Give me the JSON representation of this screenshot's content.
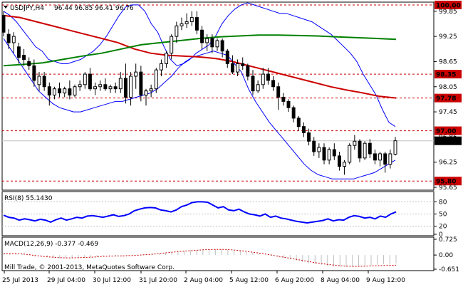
{
  "header": {
    "symbol": "USDJPY,H4",
    "ohlc": "96.44 96.85 96.41 96.76",
    "arrow_icon": "triangle-down-icon"
  },
  "main_chart": {
    "price_axis_ticks": [
      "99.85",
      "99.25",
      "98.65",
      "98.05",
      "97.45",
      "96.85",
      "96.25",
      "95.65"
    ],
    "levels": [
      {
        "value": 100.0,
        "label": "100.00",
        "color": "#cc0000"
      },
      {
        "value": 98.35,
        "label": "98.35",
        "color": "#cc0000"
      },
      {
        "value": 97.78,
        "label": "97.78",
        "color": "#cc0000"
      },
      {
        "value": 97.0,
        "label": "97.00",
        "color": "#cc0000"
      },
      {
        "value": 95.8,
        "label": "95.80",
        "color": "#cc0000"
      }
    ],
    "current_price": {
      "value": 96.76,
      "label": "96.76"
    },
    "colors": {
      "candle": "#000000",
      "bollinger": "#0000ff",
      "ma_red": "#cc0000",
      "ma_green": "#008000",
      "level_line": "#cc0000",
      "current_line": "#c0c0c0"
    }
  },
  "chart_data": {
    "type": "candlestick",
    "instrument": "USDJPY",
    "timeframe": "H4",
    "ylim": [
      95.6,
      100.05
    ],
    "x_labels": [
      "25 Jul 2013",
      "29 Jul 04:00",
      "30 Jul 12:00",
      "31 Jul 20:00",
      "2 Aug 04:00",
      "5 Aug 12:00",
      "6 Aug 20:00",
      "8 Aug 04:00",
      "9 Aug 12:00"
    ],
    "candles": [
      {
        "o": 99.75,
        "h": 99.85,
        "c": 99.35,
        "l": 99.25
      },
      {
        "o": 99.3,
        "h": 99.42,
        "c": 99.1,
        "l": 98.95
      },
      {
        "o": 99.1,
        "h": 99.35,
        "c": 99.25,
        "l": 98.85
      },
      {
        "o": 99.0,
        "h": 99.1,
        "c": 98.75,
        "l": 98.6
      },
      {
        "o": 98.8,
        "h": 98.95,
        "c": 98.7,
        "l": 98.55
      },
      {
        "o": 98.65,
        "h": 98.75,
        "c": 98.55,
        "l": 98.45
      },
      {
        "o": 98.55,
        "h": 98.7,
        "c": 98.2,
        "l": 98.05
      },
      {
        "o": 98.1,
        "h": 98.4,
        "c": 98.3,
        "l": 97.95
      },
      {
        "o": 98.3,
        "h": 98.4,
        "c": 98.05,
        "l": 97.95
      },
      {
        "o": 98.05,
        "h": 98.15,
        "c": 97.85,
        "l": 97.6
      },
      {
        "o": 97.85,
        "h": 98.05,
        "c": 98.0,
        "l": 97.75
      },
      {
        "o": 98.0,
        "h": 98.15,
        "c": 97.9,
        "l": 97.8
      },
      {
        "o": 97.9,
        "h": 98.05,
        "c": 98.0,
        "l": 97.8
      },
      {
        "o": 98.0,
        "h": 98.2,
        "c": 97.85,
        "l": 97.75
      },
      {
        "o": 97.85,
        "h": 98.1,
        "c": 98.05,
        "l": 97.8
      },
      {
        "o": 98.05,
        "h": 98.2,
        "c": 98.1,
        "l": 97.95
      },
      {
        "o": 98.1,
        "h": 98.4,
        "c": 98.35,
        "l": 98.0
      },
      {
        "o": 98.35,
        "h": 98.5,
        "c": 98.0,
        "l": 97.95
      },
      {
        "o": 98.0,
        "h": 98.15,
        "c": 98.05,
        "l": 97.85
      },
      {
        "o": 98.05,
        "h": 98.2,
        "c": 98.1,
        "l": 97.95
      },
      {
        "o": 98.1,
        "h": 98.25,
        "c": 98.0,
        "l": 97.95
      },
      {
        "o": 98.0,
        "h": 98.1,
        "c": 98.05,
        "l": 97.9
      },
      {
        "o": 98.05,
        "h": 98.15,
        "c": 98.0,
        "l": 97.9
      },
      {
        "o": 98.0,
        "h": 98.4,
        "c": 98.25,
        "l": 97.9
      },
      {
        "o": 98.25,
        "h": 98.6,
        "c": 97.8,
        "l": 97.65
      },
      {
        "o": 97.8,
        "h": 98.4,
        "c": 98.3,
        "l": 97.6
      },
      {
        "o": 98.3,
        "h": 98.6,
        "c": 98.4,
        "l": 98.0
      },
      {
        "o": 98.4,
        "h": 98.55,
        "c": 97.85,
        "l": 97.7
      },
      {
        "o": 97.85,
        "h": 98.0,
        "c": 97.95,
        "l": 97.6
      },
      {
        "o": 97.95,
        "h": 98.1,
        "c": 98.0,
        "l": 97.8
      },
      {
        "o": 98.0,
        "h": 98.5,
        "c": 98.45,
        "l": 97.9
      },
      {
        "o": 98.45,
        "h": 98.7,
        "c": 98.6,
        "l": 98.3
      },
      {
        "o": 98.6,
        "h": 98.9,
        "c": 98.85,
        "l": 98.5
      },
      {
        "o": 98.85,
        "h": 99.3,
        "c": 99.25,
        "l": 98.7
      },
      {
        "o": 99.25,
        "h": 99.6,
        "c": 99.5,
        "l": 99.1
      },
      {
        "o": 99.5,
        "h": 99.7,
        "c": 99.55,
        "l": 99.4
      },
      {
        "o": 99.55,
        "h": 99.8,
        "c": 99.6,
        "l": 99.45
      },
      {
        "o": 99.6,
        "h": 99.85,
        "c": 99.7,
        "l": 99.5
      },
      {
        "o": 99.7,
        "h": 99.85,
        "c": 99.4,
        "l": 99.3
      },
      {
        "o": 99.4,
        "h": 99.5,
        "c": 99.1,
        "l": 98.95
      },
      {
        "o": 99.1,
        "h": 99.3,
        "c": 99.2,
        "l": 98.9
      },
      {
        "o": 99.2,
        "h": 99.3,
        "c": 99.0,
        "l": 98.85
      },
      {
        "o": 99.0,
        "h": 99.2,
        "c": 99.15,
        "l": 98.9
      },
      {
        "o": 99.15,
        "h": 99.2,
        "c": 98.9,
        "l": 98.75
      },
      {
        "o": 98.9,
        "h": 98.95,
        "c": 98.6,
        "l": 98.5
      },
      {
        "o": 98.6,
        "h": 98.8,
        "c": 98.4,
        "l": 98.35
      },
      {
        "o": 98.4,
        "h": 98.7,
        "c": 98.6,
        "l": 98.3
      },
      {
        "o": 98.6,
        "h": 98.75,
        "c": 98.55,
        "l": 98.45
      },
      {
        "o": 98.55,
        "h": 98.6,
        "c": 98.3,
        "l": 98.2
      },
      {
        "o": 98.3,
        "h": 98.45,
        "c": 97.95,
        "l": 97.85
      },
      {
        "o": 97.95,
        "h": 98.2,
        "c": 98.1,
        "l": 97.9
      },
      {
        "o": 98.1,
        "h": 98.5,
        "c": 98.35,
        "l": 98.0
      },
      {
        "o": 98.35,
        "h": 98.5,
        "c": 98.2,
        "l": 98.1
      },
      {
        "o": 98.2,
        "h": 98.3,
        "c": 98.05,
        "l": 97.95
      },
      {
        "o": 98.05,
        "h": 98.15,
        "c": 97.8,
        "l": 97.5
      },
      {
        "o": 97.8,
        "h": 97.9,
        "c": 97.7,
        "l": 97.6
      },
      {
        "o": 97.7,
        "h": 97.75,
        "c": 97.55,
        "l": 97.45
      },
      {
        "o": 97.55,
        "h": 97.6,
        "c": 97.3,
        "l": 97.2
      },
      {
        "o": 97.3,
        "h": 97.35,
        "c": 97.1,
        "l": 97.0
      },
      {
        "o": 97.1,
        "h": 97.2,
        "c": 96.95,
        "l": 96.85
      },
      {
        "o": 96.95,
        "h": 97.05,
        "c": 96.75,
        "l": 96.65
      },
      {
        "o": 96.75,
        "h": 96.85,
        "c": 96.5,
        "l": 96.4
      },
      {
        "o": 96.5,
        "h": 96.7,
        "c": 96.6,
        "l": 96.35
      },
      {
        "o": 96.6,
        "h": 96.7,
        "c": 96.3,
        "l": 96.2
      },
      {
        "o": 96.3,
        "h": 96.6,
        "c": 96.55,
        "l": 96.2
      },
      {
        "o": 96.55,
        "h": 96.7,
        "c": 96.4,
        "l": 96.3
      },
      {
        "o": 96.4,
        "h": 96.5,
        "c": 96.15,
        "l": 96.05
      },
      {
        "o": 96.15,
        "h": 96.3,
        "c": 96.25,
        "l": 95.95
      },
      {
        "o": 96.25,
        "h": 96.7,
        "c": 96.65,
        "l": 96.2
      },
      {
        "o": 96.65,
        "h": 96.9,
        "c": 96.75,
        "l": 96.55
      },
      {
        "o": 96.75,
        "h": 96.8,
        "c": 96.35,
        "l": 96.25
      },
      {
        "o": 96.35,
        "h": 96.75,
        "c": 96.7,
        "l": 96.3
      },
      {
        "o": 96.7,
        "h": 96.8,
        "c": 96.45,
        "l": 96.35
      },
      {
        "o": 96.45,
        "h": 96.55,
        "c": 96.3,
        "l": 96.2
      },
      {
        "o": 96.3,
        "h": 96.5,
        "c": 96.45,
        "l": 96.15
      },
      {
        "o": 96.45,
        "h": 96.5,
        "c": 96.2,
        "l": 96.0
      },
      {
        "o": 96.2,
        "h": 96.55,
        "c": 96.45,
        "l": 96.1
      },
      {
        "o": 96.44,
        "h": 96.85,
        "c": 96.76,
        "l": 96.41
      }
    ],
    "bollinger_upper": [
      99.85,
      99.75,
      99.6,
      99.4,
      99.2,
      99.0,
      98.9,
      98.7,
      98.65,
      98.6,
      98.6,
      98.65,
      98.7,
      98.8,
      98.9,
      99.05,
      99.25,
      99.5,
      99.75,
      99.95,
      100.0,
      100.0,
      99.85,
      99.55,
      99.35,
      99.0,
      98.7,
      98.55,
      98.6,
      98.7,
      98.85,
      98.95,
      99.05,
      99.25,
      99.55,
      99.75,
      99.9,
      100.0,
      100.05,
      100.0,
      99.95,
      99.9,
      99.85,
      99.8,
      99.8,
      99.75,
      99.7,
      99.65,
      99.6,
      99.5,
      99.4,
      99.3,
      99.15,
      99.0,
      98.85,
      98.65,
      98.35,
      98.1,
      97.85,
      97.5,
      97.2,
      97.1
    ],
    "bollinger_lower": [
      99.2,
      98.95,
      98.7,
      98.45,
      98.2,
      97.95,
      97.8,
      97.65,
      97.55,
      97.5,
      97.45,
      97.45,
      97.5,
      97.55,
      97.6,
      97.65,
      97.7,
      97.7,
      97.75,
      97.8,
      97.85,
      97.9,
      98.0,
      98.15,
      98.3,
      98.5,
      98.65,
      98.75,
      98.8,
      98.85,
      98.9,
      98.85,
      98.8,
      98.6,
      98.4,
      98.0,
      97.7,
      97.45,
      97.2,
      97.0,
      96.8,
      96.6,
      96.4,
      96.2,
      96.05,
      95.95,
      95.9,
      95.85,
      95.85,
      95.85,
      95.85,
      95.9,
      95.95,
      96.0,
      96.1,
      96.2,
      96.3
    ],
    "ma_red": [
      99.75,
      99.7,
      99.6,
      99.5,
      99.4,
      99.3,
      99.2,
      99.1,
      98.95,
      98.85,
      98.8,
      98.78,
      98.76,
      98.72,
      98.65,
      98.55,
      98.45,
      98.35,
      98.25,
      98.15,
      98.05,
      97.97,
      97.9,
      97.82,
      97.78
    ],
    "ma_green": [
      98.55,
      98.58,
      98.62,
      98.7,
      98.78,
      98.85,
      98.95,
      99.05,
      99.1,
      99.15,
      99.2,
      99.24,
      99.26,
      99.28,
      99.28,
      99.27,
      99.26,
      99.24,
      99.22,
      99.2,
      99.18
    ],
    "rsi_period": 8,
    "rsi_value": 55.143,
    "rsi_levels": [
      80,
      50,
      20
    ],
    "rsi": [
      47,
      42,
      40,
      35,
      38,
      36,
      33,
      37,
      35,
      30,
      36,
      40,
      35,
      38,
      42,
      40,
      45,
      46,
      44,
      42,
      45,
      48,
      44,
      46,
      50,
      58,
      62,
      65,
      66,
      65,
      60,
      58,
      55,
      60,
      68,
      72,
      78,
      80,
      80,
      79,
      72,
      65,
      68,
      60,
      58,
      62,
      55,
      50,
      48,
      45,
      50,
      42,
      45,
      40,
      38,
      35,
      32,
      30,
      28,
      30,
      32,
      34,
      38,
      33,
      36,
      35,
      42,
      46,
      44,
      40,
      42,
      38,
      45,
      42,
      50,
      55
    ],
    "macd_params": "12,26,9",
    "macd_value": -0.377,
    "macd_signal_value": -0.469,
    "macd_axis_ticks": [
      "0.725",
      "0.00",
      "-0.651"
    ],
    "macd_hist": [
      0.05,
      0.08,
      0.1,
      0.05,
      0.02,
      -0.05,
      -0.08,
      -0.1,
      -0.12,
      -0.15,
      -0.15,
      -0.14,
      -0.12,
      -0.12,
      -0.1,
      -0.08,
      -0.06,
      -0.04,
      -0.04,
      -0.05,
      -0.03,
      -0.02,
      0.0,
      0.02,
      0.05,
      0.08,
      0.12,
      0.15,
      0.18,
      0.2,
      0.22,
      0.24,
      0.26,
      0.27,
      0.28,
      0.27,
      0.25,
      0.22,
      0.18,
      0.14,
      0.1,
      0.06,
      0.02,
      -0.04,
      -0.08,
      -0.14,
      -0.2,
      -0.26,
      -0.32,
      -0.38,
      -0.42,
      -0.46,
      -0.5,
      -0.52,
      -0.54,
      -0.55,
      -0.54,
      -0.52,
      -0.5,
      -0.48,
      -0.45,
      -0.42,
      -0.4,
      -0.38
    ],
    "macd_signal": [
      0.06,
      0.07,
      0.07,
      0.05,
      0.02,
      -0.02,
      -0.05,
      -0.08,
      -0.1,
      -0.12,
      -0.13,
      -0.13,
      -0.12,
      -0.11,
      -0.1,
      -0.08,
      -0.06,
      -0.05,
      -0.04,
      -0.04,
      -0.03,
      -0.02,
      0.0,
      0.02,
      0.04,
      0.07,
      0.1,
      0.13,
      0.16,
      0.18,
      0.2,
      0.22,
      0.24,
      0.25,
      0.26,
      0.26,
      0.25,
      0.23,
      0.2,
      0.17,
      0.13,
      0.09,
      0.05,
      0.0,
      -0.05,
      -0.1,
      -0.15,
      -0.2,
      -0.25,
      -0.3,
      -0.35,
      -0.39,
      -0.43,
      -0.46,
      -0.49,
      -0.51,
      -0.52,
      -0.52,
      -0.51,
      -0.5,
      -0.49,
      -0.48,
      -0.47,
      -0.469
    ]
  },
  "indicators": {
    "rsi_label": "RSI(8) 55.1430",
    "rsi_ticks": [
      "80",
      "50",
      "20",
      "0"
    ],
    "macd_label": "MACD(12,26,9) -0.377 -0.469",
    "macd_ticks": [
      "0.725",
      "0.00",
      "-0.651"
    ],
    "rsi_color": "#0000ff",
    "macd_hist_color": "#c0c0c0",
    "macd_signal_color": "#cc0000"
  },
  "footer": {
    "copyright": "Mill Trade, © 2001-2013, MetaQuotes Software Corp."
  }
}
